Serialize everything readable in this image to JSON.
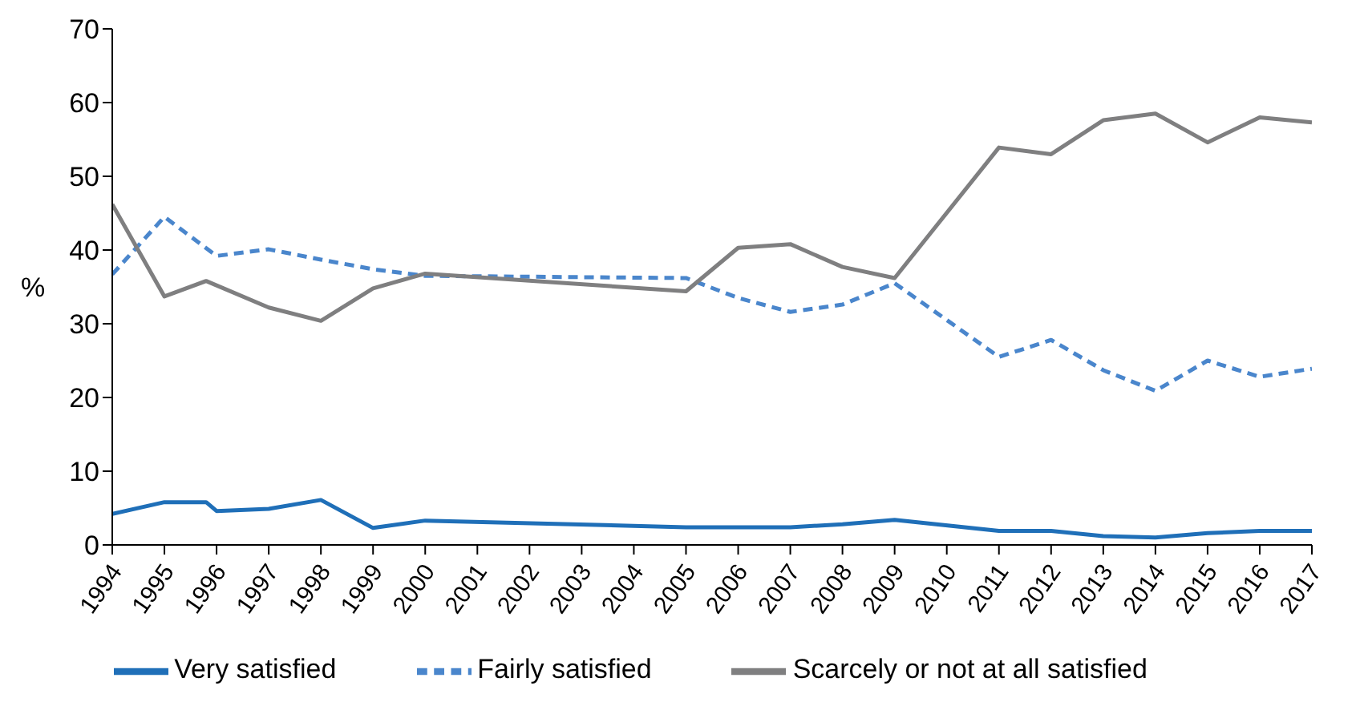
{
  "chart_data": {
    "type": "line",
    "ylabel": "%",
    "xlim": [
      1994,
      2017
    ],
    "xticks": [
      1994,
      1995,
      1996,
      1997,
      1998,
      1999,
      2000,
      2001,
      2002,
      2003,
      2004,
      2005,
      2006,
      2007,
      2008,
      2009,
      2010,
      2011,
      2012,
      2013,
      2014,
      2015,
      2016,
      2017
    ],
    "ylim": [
      0,
      70
    ],
    "yticks": [
      0,
      10,
      20,
      30,
      40,
      50,
      60,
      70
    ],
    "grid": false,
    "legend": "bottom",
    "marker": "none",
    "series": [
      {
        "name": "Very satisfied",
        "color": "#1f6fb8",
        "line_style": "solid",
        "x": [
          1994,
          1995,
          1995.8,
          1996,
          1997,
          1998,
          1999,
          2000,
          2005,
          2006,
          2007,
          2008,
          2009,
          2011,
          2012,
          2013,
          2014,
          2015,
          2016,
          2017
        ],
        "values": [
          4.2,
          5.8,
          5.8,
          4.6,
          4.9,
          6.1,
          2.3,
          3.3,
          2.4,
          2.4,
          2.4,
          2.8,
          3.4,
          1.9,
          1.9,
          1.2,
          1.0,
          1.6,
          1.9,
          1.9
        ]
      },
      {
        "name": "Fairly satisfied",
        "color": "#4a86cc",
        "line_style": "dashed",
        "x": [
          1994,
          1995,
          1996,
          1997,
          1998,
          1999,
          2000,
          2005,
          2006,
          2007,
          2008,
          2009,
          2011,
          2012,
          2013,
          2014,
          2015,
          2016,
          2017
        ],
        "values": [
          36.7,
          44.5,
          39.2,
          40.1,
          38.7,
          37.4,
          36.5,
          36.2,
          33.5,
          31.6,
          32.6,
          35.5,
          25.5,
          27.8,
          23.7,
          20.9,
          25.0,
          22.8,
          23.9
        ]
      },
      {
        "name": "Scarcely or not at all satisfied",
        "color": "#7f7f80",
        "line_style": "solid",
        "x": [
          1994,
          1995,
          1995.8,
          1997,
          1998,
          1999,
          2000,
          2005,
          2006,
          2007,
          2008,
          2009,
          2011,
          2012,
          2013,
          2014,
          2015,
          2016,
          2017
        ],
        "values": [
          46.2,
          33.7,
          35.8,
          32.2,
          30.4,
          34.8,
          36.8,
          34.4,
          40.3,
          40.8,
          37.7,
          36.2,
          53.9,
          53.0,
          57.6,
          58.5,
          54.6,
          58.0,
          57.3
        ]
      }
    ]
  }
}
